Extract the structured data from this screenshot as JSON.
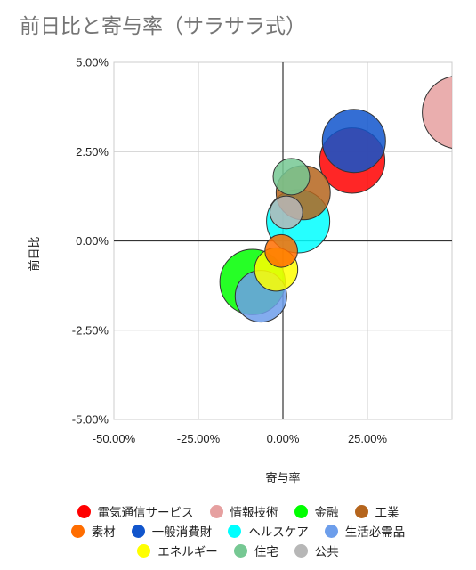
{
  "chart_data": {
    "type": "bubble",
    "title": "前日比と寄与率（サラサラ式）",
    "xlabel": "寄与率",
    "ylabel": "前日比",
    "xlim": [
      -50,
      50
    ],
    "ylim": [
      -5,
      5
    ],
    "x_ticks": [
      "-50.00%",
      "-25.00%",
      "0.00%",
      "25.00%"
    ],
    "x_tick_values": [
      -50,
      -25,
      0,
      25
    ],
    "y_ticks": [
      "5.00%",
      "2.50%",
      "0.00%",
      "-2.50%",
      "-5.00%"
    ],
    "y_tick_values": [
      5,
      2.5,
      0,
      -2.5,
      -5
    ],
    "grid": true,
    "legend_position": "bottom",
    "series": [
      {
        "name": "電気通信サービス",
        "color": "#ff0000",
        "x": 20.5,
        "y": 2.25,
        "size": 16
      },
      {
        "name": "情報技術",
        "color": "#e6a0a0",
        "x": 52.0,
        "y": 3.6,
        "size": 20
      },
      {
        "name": "金融",
        "color": "#00ff00",
        "x": -9.0,
        "y": -1.15,
        "size": 16
      },
      {
        "name": "工業",
        "color": "#b5651d",
        "x": 6.0,
        "y": 1.35,
        "size": 11
      },
      {
        "name": "素材",
        "color": "#ff6d00",
        "x": -0.5,
        "y": -0.28,
        "size": 4
      },
      {
        "name": "一般消費財",
        "color": "#1155cc",
        "x": 21.0,
        "y": 2.8,
        "size": 15
      },
      {
        "name": "ヘルスケア",
        "color": "#00ffff",
        "x": 4.5,
        "y": 0.55,
        "size": 15
      },
      {
        "name": "生活必需品",
        "color": "#6d9eeb",
        "x": -6.5,
        "y": -1.55,
        "size": 10
      },
      {
        "name": "エネルギー",
        "color": "#ffff00",
        "x": -2.0,
        "y": -0.8,
        "size": 7
      },
      {
        "name": "住宅",
        "color": "#76c893",
        "x": 2.5,
        "y": 1.8,
        "size": 5
      },
      {
        "name": "公共",
        "color": "#b7b7b7",
        "x": 1.0,
        "y": 0.8,
        "size": 4
      }
    ]
  }
}
